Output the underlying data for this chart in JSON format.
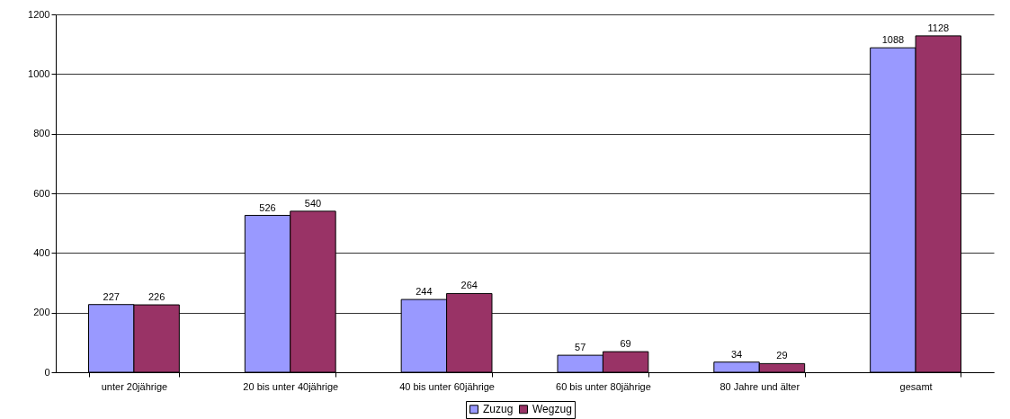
{
  "chart_data": {
    "type": "bar",
    "categories": [
      "unter 20jährige",
      "20 bis unter 40jährige",
      "40 bis unter 60jährige",
      "60 bis unter 80jährige",
      "80 Jahre und älter",
      "gesamt"
    ],
    "series": [
      {
        "name": "Zuzug",
        "color": "#9999ff",
        "values": [
          227,
          526,
          244,
          57,
          34,
          1088
        ]
      },
      {
        "name": "Wegzug",
        "color": "#993366",
        "values": [
          226,
          540,
          264,
          69,
          29,
          1128
        ]
      }
    ],
    "ylim": [
      0,
      1200
    ],
    "yticks": [
      0,
      200,
      400,
      600,
      800,
      1000,
      1200
    ],
    "grid": "y",
    "legend": "bottom",
    "data_labels": true
  }
}
